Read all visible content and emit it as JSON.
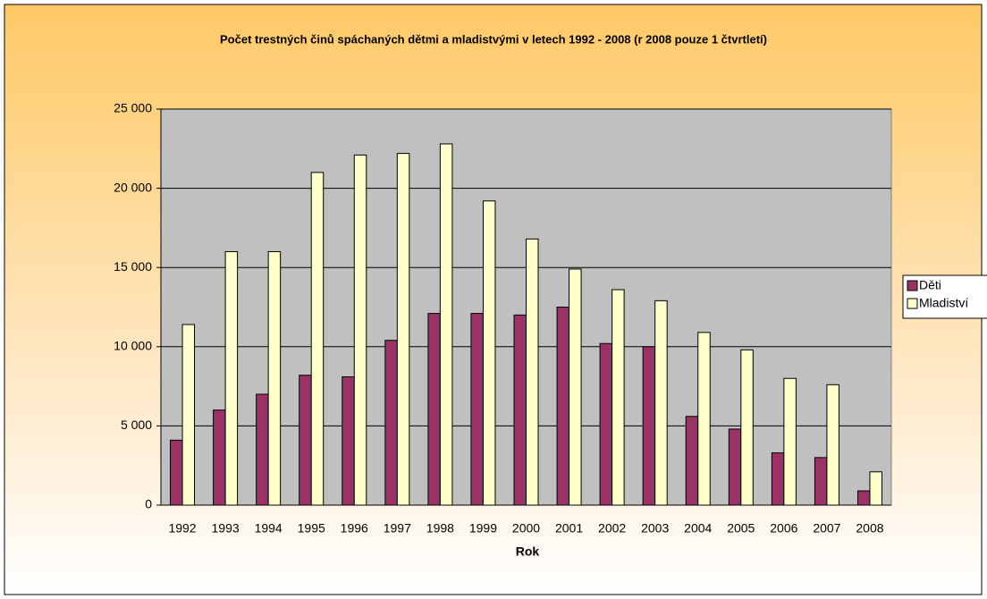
{
  "chart_data": {
    "type": "bar",
    "title": "Počet trestných činů spáchaných dětmi a mladistvými v letech 1992 - 2008 (r 2008 pouze 1 čtvrtletí)",
    "x_label": "Rok",
    "categories": [
      "1992",
      "1993",
      "1994",
      "1995",
      "1996",
      "1997",
      "1998",
      "1999",
      "2000",
      "2001",
      "2002",
      "2003",
      "2004",
      "2005",
      "2006",
      "2007",
      "2008"
    ],
    "series": [
      {
        "name": "Děti",
        "color": "#993366",
        "values": [
          4100,
          6000,
          7000,
          8200,
          8100,
          10400,
          12100,
          12100,
          12000,
          12500,
          10200,
          10000,
          5600,
          4800,
          3300,
          3000,
          900
        ]
      },
      {
        "name": "Mladiství",
        "color": "#ffffcc",
        "values": [
          11400,
          16000,
          16000,
          21000,
          22100,
          22200,
          22800,
          19200,
          16800,
          14900,
          13600,
          12900,
          10900,
          9800,
          8000,
          7600,
          2100
        ]
      }
    ],
    "ylim": [
      0,
      25000
    ],
    "yticks": [
      0,
      {
        "value": 5000,
        "label": "5 000"
      },
      {
        "value": 10000,
        "label": "10 000"
      },
      {
        "value": 15000,
        "label": "15 000"
      },
      {
        "value": 20000,
        "label": "20 000"
      },
      {
        "value": 25000,
        "label": "25 000"
      }
    ],
    "grid": true,
    "legend": "right"
  }
}
